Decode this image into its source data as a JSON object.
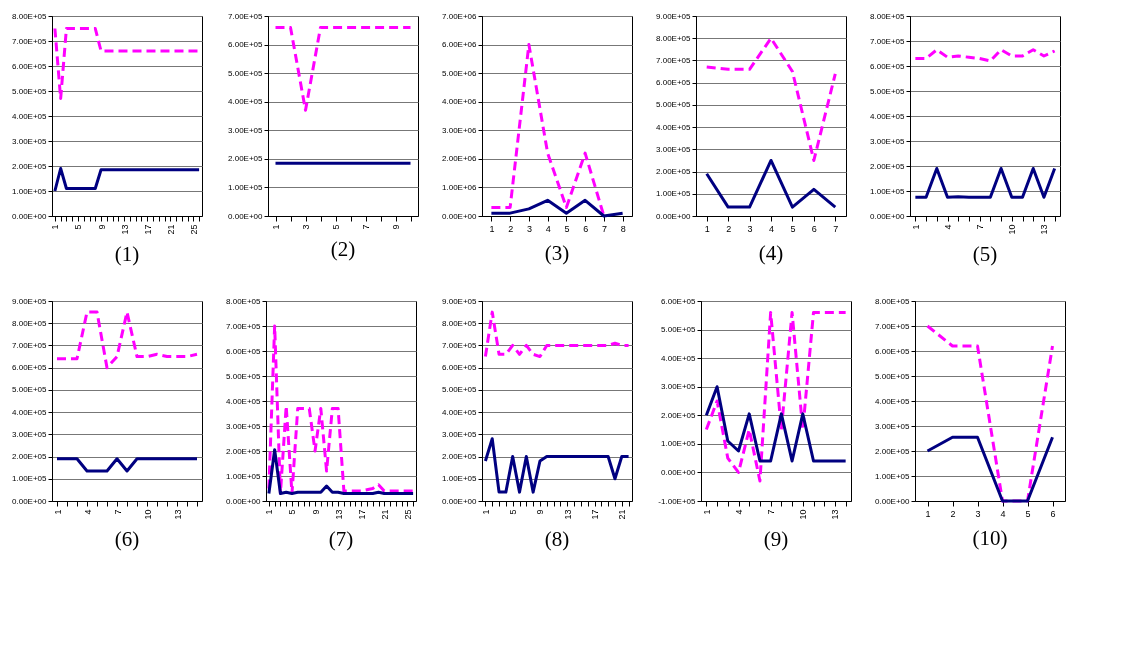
{
  "chart_data": [
    {
      "type": "line",
      "title": "(1)",
      "categories": [
        "1",
        null,
        null,
        null,
        "5",
        null,
        null,
        null,
        "9",
        null,
        null,
        null,
        "13",
        null,
        null,
        null,
        "17",
        null,
        null,
        null,
        "21",
        null,
        null,
        null,
        "25",
        null
      ],
      "series": [
        {
          "color": "#ff00ff",
          "line_style": "dashed",
          "values": [
            750000,
            470000,
            750000,
            750000,
            750000,
            750000,
            750000,
            750000,
            660000,
            660000,
            660000,
            660000,
            660000,
            660000,
            660000,
            660000,
            660000,
            660000,
            660000,
            660000,
            660000,
            660000,
            660000,
            660000,
            660000,
            660000
          ]
        },
        {
          "color": "#000080",
          "line_style": "solid",
          "values": [
            100000,
            190000,
            110000,
            110000,
            110000,
            110000,
            110000,
            110000,
            185000,
            185000,
            185000,
            185000,
            185000,
            185000,
            185000,
            185000,
            185000,
            185000,
            185000,
            185000,
            185000,
            185000,
            185000,
            185000,
            185000,
            185000
          ]
        }
      ],
      "ylim": [
        0,
        800000
      ],
      "yticks": [
        {
          "value": 0,
          "label": "0.00E+00"
        },
        {
          "value": 100000,
          "label": "1.00E+05"
        },
        {
          "value": 200000,
          "label": "2.00E+05"
        },
        {
          "value": 300000,
          "label": "3.00E+05"
        },
        {
          "value": 400000,
          "label": "4.00E+05"
        },
        {
          "value": 500000,
          "label": "5.00E+05"
        },
        {
          "value": 600000,
          "label": "6.00E+05"
        },
        {
          "value": 700000,
          "label": "7.00E+05"
        },
        {
          "value": 800000,
          "label": "8.00E+05"
        }
      ],
      "grid": "y"
    },
    {
      "type": "line",
      "title": "(2)",
      "categories": [
        "1",
        null,
        "3",
        null,
        "5",
        null,
        "7",
        null,
        "9",
        null
      ],
      "series": [
        {
          "color": "#ff00ff",
          "line_style": "dashed",
          "values": [
            660000,
            660000,
            370000,
            660000,
            660000,
            660000,
            660000,
            660000,
            660000,
            660000
          ]
        },
        {
          "color": "#000080",
          "line_style": "solid",
          "values": [
            185000,
            185000,
            185000,
            185000,
            185000,
            185000,
            185000,
            185000,
            185000,
            185000
          ]
        }
      ],
      "ylim": [
        0,
        700000
      ],
      "yticks": [
        {
          "value": 0,
          "label": "0.00E+00"
        },
        {
          "value": 100000,
          "label": "1.00E+05"
        },
        {
          "value": 200000,
          "label": "2.00E+05"
        },
        {
          "value": 300000,
          "label": "3.00E+05"
        },
        {
          "value": 400000,
          "label": "4.00E+05"
        },
        {
          "value": 500000,
          "label": "5.00E+05"
        },
        {
          "value": 600000,
          "label": "6.00E+05"
        },
        {
          "value": 700000,
          "label": "7.00E+05"
        }
      ],
      "grid": "y"
    },
    {
      "type": "line",
      "title": "(3)",
      "categories": [
        "1",
        "2",
        "3",
        "4",
        "5",
        "6",
        "7",
        "8"
      ],
      "series": [
        {
          "color": "#ff00ff",
          "line_style": "dashed",
          "values": [
            300000,
            300000,
            6000000,
            2200000,
            300000,
            2200000,
            0,
            null
          ]
        },
        {
          "color": "#000080",
          "line_style": "solid",
          "values": [
            100000,
            100000,
            250000,
            550000,
            100000,
            550000,
            0,
            100000
          ]
        }
      ],
      "ylim": [
        0,
        7000000
      ],
      "yticks": [
        {
          "value": 0,
          "label": "0.00E+00"
        },
        {
          "value": 1000000,
          "label": "1.00E+06"
        },
        {
          "value": 2000000,
          "label": "2.00E+06"
        },
        {
          "value": 3000000,
          "label": "3.00E+06"
        },
        {
          "value": 4000000,
          "label": "4.00E+06"
        },
        {
          "value": 5000000,
          "label": "5.00E+06"
        },
        {
          "value": 6000000,
          "label": "6.00E+06"
        },
        {
          "value": 7000000,
          "label": "7.00E+06"
        }
      ],
      "grid": "y"
    },
    {
      "type": "line",
      "title": "(4)",
      "categories": [
        "1",
        "2",
        "3",
        "4",
        "5",
        "6",
        "7"
      ],
      "series": [
        {
          "color": "#ff00ff",
          "line_style": "dashed",
          "values": [
            670000,
            660000,
            660000,
            800000,
            650000,
            250000,
            640000
          ]
        },
        {
          "color": "#000080",
          "line_style": "solid",
          "values": [
            190000,
            40000,
            40000,
            250000,
            40000,
            120000,
            40000
          ]
        }
      ],
      "ylim": [
        0,
        900000
      ],
      "yticks": [
        {
          "value": 0,
          "label": "0.00E+00"
        },
        {
          "value": 100000,
          "label": "1.00E+05"
        },
        {
          "value": 200000,
          "label": "2.00E+05"
        },
        {
          "value": 300000,
          "label": "3.00E+05"
        },
        {
          "value": 400000,
          "label": "4.00E+05"
        },
        {
          "value": 500000,
          "label": "5.00E+05"
        },
        {
          "value": 600000,
          "label": "6.00E+05"
        },
        {
          "value": 700000,
          "label": "7.00E+05"
        },
        {
          "value": 800000,
          "label": "8.00E+05"
        },
        {
          "value": 900000,
          "label": "9.00E+05"
        }
      ],
      "grid": "y"
    },
    {
      "type": "line",
      "title": "(5)",
      "categories": [
        "1",
        null,
        null,
        "4",
        null,
        null,
        "7",
        null,
        null,
        "10",
        null,
        null,
        "13",
        null
      ],
      "series": [
        {
          "color": "#ff00ff",
          "line_style": "dashed",
          "values": [
            630000,
            630000,
            665000,
            635000,
            640000,
            635000,
            630000,
            620000,
            665000,
            640000,
            640000,
            665000,
            640000,
            660000
          ]
        },
        {
          "color": "#000080",
          "line_style": "solid",
          "values": [
            75000,
            75000,
            190000,
            75000,
            77000,
            75000,
            75000,
            75000,
            190000,
            75000,
            75000,
            190000,
            75000,
            190000
          ]
        }
      ],
      "ylim": [
        0,
        800000
      ],
      "yticks": [
        {
          "value": 0,
          "label": "0.00E+00"
        },
        {
          "value": 100000,
          "label": "1.00E+05"
        },
        {
          "value": 200000,
          "label": "2.00E+05"
        },
        {
          "value": 300000,
          "label": "3.00E+05"
        },
        {
          "value": 400000,
          "label": "4.00E+05"
        },
        {
          "value": 500000,
          "label": "5.00E+05"
        },
        {
          "value": 600000,
          "label": "6.00E+05"
        },
        {
          "value": 700000,
          "label": "7.00E+05"
        },
        {
          "value": 800000,
          "label": "8.00E+05"
        }
      ],
      "grid": "y"
    },
    {
      "type": "line",
      "title": "(6)",
      "categories": [
        "1",
        null,
        null,
        "4",
        null,
        null,
        "7",
        null,
        null,
        "10",
        null,
        null,
        "13",
        null,
        null
      ],
      "series": [
        {
          "color": "#ff00ff",
          "line_style": "dashed",
          "values": [
            640000,
            640000,
            640000,
            850000,
            850000,
            600000,
            650000,
            850000,
            650000,
            650000,
            660000,
            650000,
            650000,
            650000,
            660000
          ]
        },
        {
          "color": "#000080",
          "line_style": "solid",
          "values": [
            190000,
            190000,
            190000,
            135000,
            135000,
            135000,
            190000,
            135000,
            190000,
            190000,
            190000,
            190000,
            190000,
            190000,
            190000
          ]
        }
      ],
      "ylim": [
        0,
        900000
      ],
      "yticks": [
        {
          "value": 0,
          "label": "0.00E+00"
        },
        {
          "value": 100000,
          "label": "1.00E+05"
        },
        {
          "value": 200000,
          "label": "2.00E+05"
        },
        {
          "value": 300000,
          "label": "3.00E+05"
        },
        {
          "value": 400000,
          "label": "4.00E+05"
        },
        {
          "value": 500000,
          "label": "5.00E+05"
        },
        {
          "value": 600000,
          "label": "6.00E+05"
        },
        {
          "value": 700000,
          "label": "7.00E+05"
        },
        {
          "value": 800000,
          "label": "8.00E+05"
        },
        {
          "value": 900000,
          "label": "9.00E+05"
        }
      ],
      "grid": "y"
    },
    {
      "type": "line",
      "title": "(7)",
      "categories": [
        "1",
        null,
        null,
        null,
        "5",
        null,
        null,
        null,
        "9",
        null,
        null,
        null,
        "13",
        null,
        null,
        null,
        "17",
        null,
        null,
        null,
        "21",
        null,
        null,
        null,
        "25",
        null
      ],
      "series": [
        {
          "color": "#ff00ff",
          "line_style": "dashed",
          "values": [
            50000,
            700000,
            30000,
            380000,
            30000,
            370000,
            370000,
            370000,
            200000,
            370000,
            120000,
            370000,
            370000,
            40000,
            40000,
            40000,
            40000,
            45000,
            50000,
            65000,
            40000,
            40000,
            40000,
            40000,
            40000,
            40000
          ]
        },
        {
          "color": "#000080",
          "line_style": "solid",
          "values": [
            30000,
            205000,
            30000,
            35000,
            30000,
            35000,
            35000,
            35000,
            35000,
            35000,
            60000,
            35000,
            35000,
            30000,
            30000,
            30000,
            30000,
            30000,
            30000,
            35000,
            30000,
            30000,
            30000,
            30000,
            30000,
            30000
          ]
        }
      ],
      "ylim": [
        0,
        800000
      ],
      "yticks": [
        {
          "value": 0,
          "label": "0.00E+00"
        },
        {
          "value": 100000,
          "label": "1.00E+05"
        },
        {
          "value": 200000,
          "label": "2.00E+05"
        },
        {
          "value": 300000,
          "label": "3.00E+05"
        },
        {
          "value": 400000,
          "label": "4.00E+05"
        },
        {
          "value": 500000,
          "label": "5.00E+05"
        },
        {
          "value": 600000,
          "label": "6.00E+05"
        },
        {
          "value": 700000,
          "label": "7.00E+05"
        },
        {
          "value": 800000,
          "label": "8.00E+05"
        }
      ],
      "grid": "y"
    },
    {
      "type": "line",
      "title": "(8)",
      "categories": [
        "1",
        null,
        null,
        null,
        "5",
        null,
        null,
        null,
        "9",
        null,
        null,
        null,
        "13",
        null,
        null,
        null,
        "17",
        null,
        null,
        null,
        "21",
        null
      ],
      "series": [
        {
          "color": "#ff00ff",
          "line_style": "dashed",
          "values": [
            650000,
            850000,
            660000,
            660000,
            700000,
            660000,
            700000,
            660000,
            650000,
            700000,
            700000,
            700000,
            700000,
            700000,
            700000,
            700000,
            700000,
            700000,
            700000,
            710000,
            700000,
            700000
          ]
        },
        {
          "color": "#000080",
          "line_style": "solid",
          "values": [
            180000,
            280000,
            40000,
            40000,
            200000,
            40000,
            200000,
            40000,
            180000,
            200000,
            200000,
            200000,
            200000,
            200000,
            200000,
            200000,
            200000,
            200000,
            200000,
            100000,
            200000,
            200000
          ]
        }
      ],
      "ylim": [
        0,
        900000
      ],
      "yticks": [
        {
          "value": 0,
          "label": "0.00E+00"
        },
        {
          "value": 100000,
          "label": "1.00E+05"
        },
        {
          "value": 200000,
          "label": "2.00E+05"
        },
        {
          "value": 300000,
          "label": "3.00E+05"
        },
        {
          "value": 400000,
          "label": "4.00E+05"
        },
        {
          "value": 500000,
          "label": "5.00E+05"
        },
        {
          "value": 600000,
          "label": "6.00E+05"
        },
        {
          "value": 700000,
          "label": "7.00E+05"
        },
        {
          "value": 800000,
          "label": "8.00E+05"
        },
        {
          "value": 900000,
          "label": "9.00E+05"
        }
      ],
      "grid": "y"
    },
    {
      "type": "line",
      "title": "(9)",
      "categories": [
        "1",
        null,
        null,
        "4",
        null,
        null,
        "7",
        null,
        null,
        "10",
        null,
        null,
        "13",
        null
      ],
      "series": [
        {
          "color": "#ff00ff",
          "line_style": "dashed",
          "values": [
            150000,
            250000,
            50000,
            0,
            150000,
            -30000,
            560000,
            150000,
            560000,
            150000,
            560000,
            560000,
            560000,
            560000
          ]
        },
        {
          "color": "#000080",
          "line_style": "solid",
          "values": [
            200000,
            300000,
            110000,
            75000,
            205000,
            40000,
            40000,
            205000,
            40000,
            205000,
            40000,
            40000,
            40000,
            40000
          ]
        }
      ],
      "ylim": [
        -100000,
        600000
      ],
      "yticks": [
        {
          "value": -100000,
          "label": "-1.00E+05"
        },
        {
          "value": 0,
          "label": "0.00E+00"
        },
        {
          "value": 100000,
          "label": "1.00E+05"
        },
        {
          "value": 200000,
          "label": "2.00E+05"
        },
        {
          "value": 300000,
          "label": "3.00E+05"
        },
        {
          "value": 400000,
          "label": "4.00E+05"
        },
        {
          "value": 500000,
          "label": "5.00E+05"
        },
        {
          "value": 600000,
          "label": "6.00E+05"
        }
      ],
      "grid": "y"
    },
    {
      "type": "line",
      "title": "(10)",
      "categories": [
        "1",
        "2",
        "3",
        "4",
        "5",
        "6"
      ],
      "series": [
        {
          "color": "#ff00ff",
          "line_style": "dashed",
          "values": [
            700000,
            620000,
            620000,
            0,
            0,
            620000
          ]
        },
        {
          "color": "#000080",
          "line_style": "solid",
          "values": [
            200000,
            255000,
            255000,
            0,
            0,
            255000
          ]
        }
      ],
      "ylim": [
        0,
        800000
      ],
      "yticks": [
        {
          "value": 0,
          "label": "0.00E+00"
        },
        {
          "value": 100000,
          "label": "1.00E+05"
        },
        {
          "value": 200000,
          "label": "2.00E+05"
        },
        {
          "value": 300000,
          "label": "3.00E+05"
        },
        {
          "value": 400000,
          "label": "4.00E+05"
        },
        {
          "value": 500000,
          "label": "5.00E+05"
        },
        {
          "value": 600000,
          "label": "6.00E+05"
        },
        {
          "value": 700000,
          "label": "7.00E+05"
        },
        {
          "value": 800000,
          "label": "8.00E+05"
        }
      ],
      "grid": "y"
    }
  ]
}
